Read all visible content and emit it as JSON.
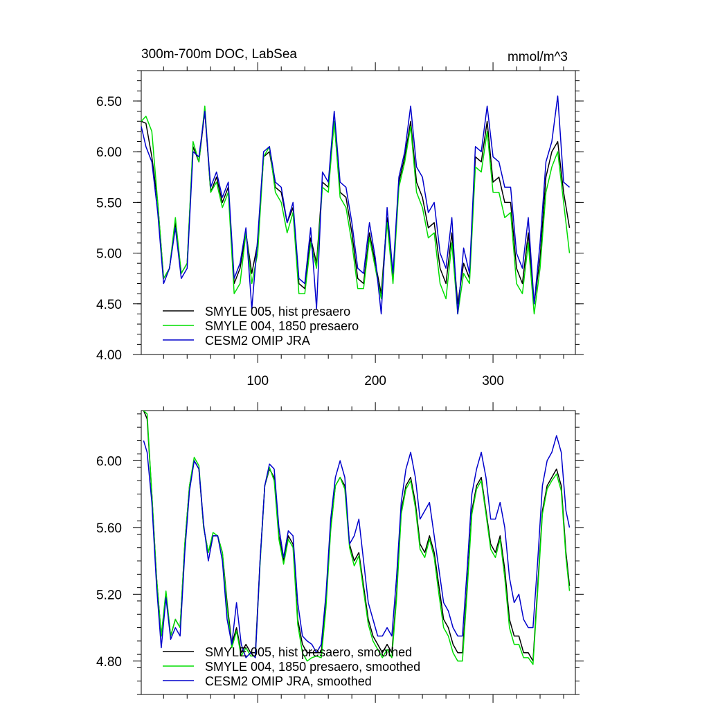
{
  "colors": {
    "smyle005": "#000000",
    "smyle004": "#00dd00",
    "cesm2": "#0000cc",
    "axis": "#000000"
  },
  "chart_data": [
    {
      "type": "line",
      "title": "300m-700m DOC, LabSea",
      "units": "mmol/m^3",
      "xlim": [
        1,
        370
      ],
      "ylim": [
        4.0,
        6.8
      ],
      "x_ticks": [
        100,
        200,
        300
      ],
      "x_tick_labels": [
        "100",
        "200",
        "300"
      ],
      "y_ticks": [
        4.0,
        4.5,
        5.0,
        5.5,
        6.0,
        6.5
      ],
      "y_tick_labels": [
        "4.00",
        "4.50",
        "5.00",
        "5.50",
        "6.00",
        "6.50"
      ],
      "legend_position": "bottom-left",
      "series": [
        {
          "name": "SMYLE 005, hist presaero",
          "color_key": "smyle005",
          "x": [
            1,
            5,
            10,
            15,
            20,
            25,
            30,
            35,
            40,
            45,
            50,
            55,
            60,
            65,
            70,
            75,
            80,
            85,
            90,
            95,
            100,
            105,
            110,
            115,
            120,
            125,
            130,
            135,
            140,
            145,
            150,
            155,
            160,
            165,
            170,
            175,
            180,
            185,
            190,
            195,
            200,
            205,
            210,
            215,
            220,
            225,
            230,
            235,
            240,
            245,
            250,
            255,
            260,
            265,
            270,
            275,
            280,
            285,
            290,
            295,
            300,
            305,
            310,
            315,
            320,
            325,
            330,
            335,
            340,
            345,
            350,
            355,
            360,
            365
          ],
          "values": [
            6.3,
            6.28,
            5.95,
            5.5,
            4.75,
            4.85,
            5.3,
            4.8,
            4.9,
            6.05,
            5.9,
            6.4,
            5.6,
            5.75,
            5.5,
            5.65,
            4.7,
            4.85,
            5.2,
            4.8,
            5.1,
            5.95,
            6.0,
            5.65,
            5.6,
            5.3,
            5.45,
            4.7,
            4.65,
            5.15,
            4.9,
            5.7,
            5.65,
            6.3,
            5.6,
            5.55,
            5.2,
            4.75,
            4.7,
            5.2,
            4.9,
            4.6,
            5.35,
            4.75,
            5.7,
            5.95,
            6.3,
            5.7,
            5.55,
            5.25,
            5.3,
            4.85,
            4.7,
            5.2,
            4.5,
            4.9,
            4.75,
            5.95,
            5.9,
            6.3,
            5.7,
            5.75,
            5.5,
            5.5,
            4.85,
            4.7,
            5.2,
            4.5,
            4.95,
            5.75,
            6.0,
            6.1,
            5.6,
            5.25
          ]
        },
        {
          "name": "SMYLE 004, 1850 presaero",
          "color_key": "smyle004",
          "x": [
            1,
            5,
            10,
            15,
            20,
            25,
            30,
            35,
            40,
            45,
            50,
            55,
            60,
            65,
            70,
            75,
            80,
            85,
            90,
            95,
            100,
            105,
            110,
            115,
            120,
            125,
            130,
            135,
            140,
            145,
            150,
            155,
            160,
            165,
            170,
            175,
            180,
            185,
            190,
            195,
            200,
            205,
            210,
            215,
            220,
            225,
            230,
            235,
            240,
            245,
            250,
            255,
            260,
            265,
            270,
            275,
            280,
            285,
            290,
            295,
            300,
            305,
            310,
            315,
            320,
            325,
            330,
            335,
            340,
            345,
            350,
            355,
            360,
            365
          ],
          "values": [
            6.3,
            6.35,
            6.2,
            5.5,
            4.75,
            4.85,
            5.35,
            4.8,
            4.9,
            6.1,
            5.9,
            6.45,
            5.6,
            5.7,
            5.45,
            5.6,
            4.6,
            4.7,
            5.2,
            4.7,
            5.0,
            5.95,
            6.05,
            5.6,
            5.5,
            5.2,
            5.4,
            4.6,
            4.6,
            5.1,
            4.85,
            5.65,
            5.6,
            6.3,
            5.55,
            5.45,
            5.1,
            4.65,
            4.65,
            5.15,
            4.85,
            4.55,
            5.3,
            4.7,
            5.65,
            5.9,
            6.25,
            5.6,
            5.45,
            5.15,
            5.2,
            4.7,
            4.55,
            5.1,
            4.4,
            4.8,
            4.7,
            5.85,
            5.8,
            6.2,
            5.6,
            5.6,
            5.35,
            5.4,
            4.7,
            4.6,
            5.1,
            4.4,
            4.85,
            5.6,
            5.85,
            6.0,
            5.5,
            5.0
          ]
        },
        {
          "name": "CESM2 OMIP JRA",
          "color_key": "cesm2",
          "x": [
            1,
            5,
            10,
            15,
            20,
            25,
            30,
            35,
            40,
            45,
            50,
            55,
            60,
            65,
            70,
            75,
            80,
            85,
            90,
            95,
            100,
            105,
            110,
            115,
            120,
            125,
            130,
            135,
            140,
            145,
            150,
            155,
            160,
            165,
            170,
            175,
            180,
            185,
            190,
            195,
            200,
            205,
            210,
            215,
            220,
            225,
            230,
            235,
            240,
            245,
            250,
            255,
            260,
            265,
            270,
            275,
            280,
            285,
            290,
            295,
            300,
            305,
            310,
            315,
            320,
            325,
            330,
            335,
            340,
            345,
            350,
            355,
            360,
            365
          ],
          "values": [
            6.25,
            6.05,
            5.9,
            5.4,
            4.7,
            4.85,
            5.25,
            4.75,
            4.85,
            6.0,
            5.95,
            6.4,
            5.65,
            5.8,
            5.55,
            5.7,
            4.75,
            4.9,
            5.25,
            4.45,
            5.15,
            6.0,
            6.05,
            5.7,
            5.65,
            5.3,
            5.5,
            4.75,
            4.7,
            5.25,
            4.45,
            5.8,
            5.7,
            6.4,
            5.7,
            5.65,
            5.3,
            4.85,
            4.8,
            5.3,
            4.95,
            4.4,
            5.45,
            4.8,
            5.75,
            6.0,
            6.45,
            5.85,
            5.75,
            5.4,
            5.5,
            5.0,
            4.85,
            5.35,
            4.4,
            5.05,
            4.8,
            6.05,
            6.0,
            6.45,
            5.95,
            5.9,
            5.65,
            5.65,
            5.0,
            4.85,
            5.35,
            4.5,
            5.1,
            5.9,
            6.1,
            6.55,
            5.7,
            5.65
          ]
        }
      ]
    },
    {
      "type": "line",
      "title": "",
      "units": "",
      "xlim": [
        1,
        370
      ],
      "ylim": [
        4.6,
        6.3
      ],
      "x_ticks": [
        100,
        200,
        300
      ],
      "x_tick_labels": [],
      "y_ticks": [
        4.8,
        5.2,
        5.6,
        6.0
      ],
      "y_tick_labels": [
        "4.80",
        "5.20",
        "5.60",
        "6.00"
      ],
      "legend_position": "bottom-left",
      "series": [
        {
          "name": "SMYLE 005, hist presaero, smoothed",
          "color_key": "smyle005",
          "x": [
            3,
            6,
            10,
            14,
            18,
            22,
            26,
            30,
            34,
            38,
            42,
            46,
            50,
            54,
            58,
            62,
            66,
            70,
            74,
            78,
            82,
            86,
            90,
            94,
            98,
            102,
            106,
            110,
            114,
            118,
            122,
            126,
            130,
            134,
            138,
            142,
            146,
            150,
            154,
            158,
            162,
            166,
            170,
            174,
            178,
            182,
            186,
            190,
            194,
            198,
            202,
            206,
            210,
            214,
            218,
            222,
            226,
            230,
            234,
            238,
            242,
            246,
            250,
            254,
            258,
            262,
            266,
            270,
            274,
            278,
            282,
            286,
            290,
            294,
            298,
            302,
            306,
            310,
            314,
            318,
            322,
            326,
            330,
            334,
            338,
            342,
            346,
            350,
            354,
            358,
            362,
            365
          ],
          "values": [
            6.3,
            6.25,
            5.8,
            5.3,
            4.95,
            5.2,
            4.95,
            5.05,
            5.0,
            5.5,
            5.85,
            6.0,
            5.95,
            5.6,
            5.45,
            5.55,
            5.55,
            5.45,
            5.15,
            4.9,
            5.0,
            4.85,
            4.9,
            4.85,
            4.85,
            5.4,
            5.85,
            5.95,
            5.9,
            5.55,
            5.4,
            5.55,
            5.5,
            5.05,
            4.9,
            4.85,
            4.85,
            4.85,
            4.85,
            5.15,
            5.6,
            5.85,
            5.9,
            5.85,
            5.5,
            5.4,
            5.45,
            5.25,
            5.05,
            4.95,
            4.9,
            4.85,
            4.9,
            4.85,
            5.2,
            5.7,
            5.85,
            5.9,
            5.75,
            5.5,
            5.45,
            5.55,
            5.45,
            5.25,
            5.05,
            5.0,
            4.9,
            4.85,
            4.85,
            5.25,
            5.7,
            5.85,
            5.9,
            5.7,
            5.5,
            5.45,
            5.55,
            5.35,
            5.05,
            4.95,
            4.95,
            4.85,
            4.85,
            4.8,
            5.25,
            5.7,
            5.85,
            5.9,
            5.95,
            5.85,
            5.45,
            5.25
          ]
        },
        {
          "name": "SMYLE 004, 1850 presaero, smoothed",
          "color_key": "smyle004",
          "x": [
            3,
            6,
            10,
            14,
            18,
            22,
            26,
            30,
            34,
            38,
            42,
            46,
            50,
            54,
            58,
            62,
            66,
            70,
            74,
            78,
            82,
            86,
            90,
            94,
            98,
            102,
            106,
            110,
            114,
            118,
            122,
            126,
            130,
            134,
            138,
            142,
            146,
            150,
            154,
            158,
            162,
            166,
            170,
            174,
            178,
            182,
            186,
            190,
            194,
            198,
            202,
            206,
            210,
            214,
            218,
            222,
            226,
            230,
            234,
            238,
            242,
            246,
            250,
            254,
            258,
            262,
            266,
            270,
            274,
            278,
            282,
            286,
            290,
            294,
            298,
            302,
            306,
            310,
            314,
            318,
            322,
            326,
            330,
            334,
            338,
            342,
            346,
            350,
            354,
            358,
            362,
            365
          ],
          "values": [
            6.3,
            6.28,
            5.8,
            5.3,
            4.95,
            5.22,
            4.95,
            5.05,
            5.0,
            5.5,
            5.85,
            6.02,
            5.97,
            5.6,
            5.45,
            5.57,
            5.55,
            5.45,
            5.12,
            4.88,
            4.98,
            4.83,
            4.88,
            4.83,
            4.83,
            5.38,
            5.85,
            5.96,
            5.88,
            5.53,
            5.38,
            5.53,
            5.48,
            5.02,
            4.85,
            4.8,
            4.82,
            4.83,
            4.82,
            5.12,
            5.58,
            5.85,
            5.9,
            5.83,
            5.48,
            5.37,
            5.43,
            5.22,
            5.02,
            4.92,
            4.87,
            4.82,
            4.87,
            4.82,
            5.17,
            5.68,
            5.83,
            5.88,
            5.72,
            5.47,
            5.42,
            5.53,
            5.42,
            5.2,
            5.0,
            4.95,
            4.85,
            4.8,
            4.8,
            5.22,
            5.68,
            5.83,
            5.88,
            5.68,
            5.47,
            5.42,
            5.53,
            5.3,
            5.0,
            4.9,
            4.9,
            4.82,
            4.82,
            4.78,
            5.22,
            5.68,
            5.83,
            5.88,
            5.92,
            5.82,
            5.42,
            5.22
          ]
        },
        {
          "name": "CESM2 OMIP JRA, smoothed",
          "color_key": "cesm2",
          "x": [
            3,
            6,
            10,
            14,
            18,
            22,
            26,
            30,
            34,
            38,
            42,
            46,
            50,
            54,
            58,
            62,
            66,
            70,
            74,
            78,
            82,
            86,
            90,
            94,
            98,
            102,
            106,
            110,
            114,
            118,
            122,
            126,
            130,
            134,
            138,
            142,
            146,
            150,
            154,
            158,
            162,
            166,
            170,
            174,
            178,
            182,
            186,
            190,
            194,
            198,
            202,
            206,
            210,
            214,
            218,
            222,
            226,
            230,
            234,
            238,
            242,
            246,
            250,
            254,
            258,
            262,
            266,
            270,
            274,
            278,
            282,
            286,
            290,
            294,
            298,
            302,
            306,
            310,
            314,
            318,
            322,
            326,
            330,
            334,
            338,
            342,
            346,
            350,
            354,
            358,
            362,
            365
          ],
          "values": [
            6.12,
            6.05,
            5.75,
            5.25,
            4.88,
            5.18,
            4.93,
            5.0,
            4.95,
            5.45,
            5.82,
            6.0,
            5.95,
            5.62,
            5.4,
            5.55,
            5.55,
            5.4,
            5.05,
            4.9,
            5.15,
            4.9,
            4.82,
            4.85,
            4.82,
            5.4,
            5.85,
            5.98,
            5.95,
            5.6,
            5.42,
            5.58,
            5.55,
            5.15,
            4.95,
            4.92,
            4.9,
            4.85,
            4.9,
            5.2,
            5.65,
            5.9,
            6.0,
            5.9,
            5.5,
            5.55,
            5.65,
            5.4,
            5.15,
            5.05,
            4.95,
            4.95,
            5.0,
            4.95,
            5.3,
            5.75,
            5.95,
            6.05,
            5.9,
            5.65,
            5.7,
            5.75,
            5.55,
            5.35,
            5.15,
            5.1,
            5.0,
            4.95,
            4.95,
            5.35,
            5.8,
            5.95,
            6.05,
            5.9,
            5.65,
            5.65,
            5.75,
            5.6,
            5.3,
            5.15,
            5.2,
            5.05,
            5.0,
            5.0,
            5.4,
            5.85,
            6.0,
            6.05,
            6.15,
            6.05,
            5.7,
            5.6
          ]
        }
      ]
    }
  ]
}
